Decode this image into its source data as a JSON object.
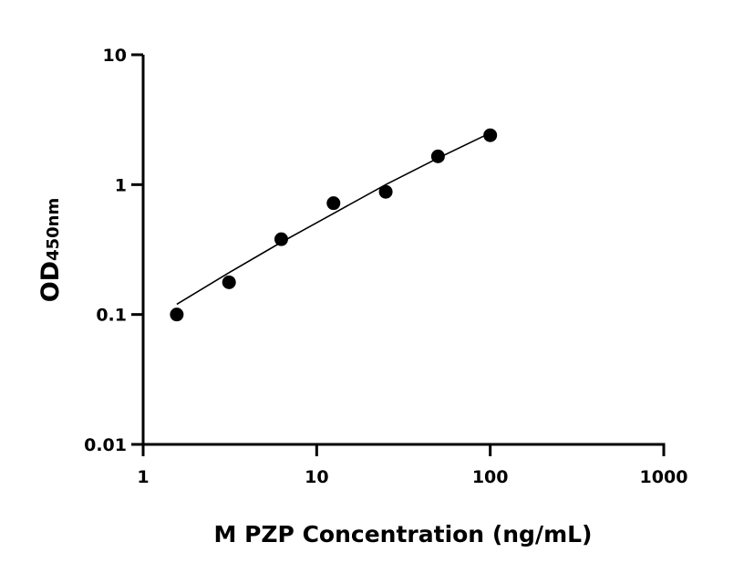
{
  "chart_data": {
    "type": "scatter",
    "title": "",
    "xlabel": "M PZP Concentration (ng/mL)",
    "ylabel": "OD",
    "ylabel_subscript": "450nm",
    "xscale": "log",
    "yscale": "log",
    "xlim": [
      1,
      1000
    ],
    "ylim": [
      0.01,
      10
    ],
    "xticks": [
      1,
      10,
      100,
      1000
    ],
    "xtick_labels": [
      "1",
      "10",
      "100",
      "1000"
    ],
    "yticks": [
      0.01,
      0.1,
      1,
      10
    ],
    "ytick_labels": [
      "0.01",
      "0.1",
      "1",
      "10"
    ],
    "grid": false,
    "legend": "none",
    "colors": {
      "points": "#000000",
      "curve": "#000000"
    },
    "series": [
      {
        "x": [
          1.5625,
          3.125,
          6.25,
          12.5,
          25,
          50,
          100
        ],
        "y": [
          0.1,
          0.177,
          0.38,
          0.72,
          0.88,
          1.65,
          2.4
        ]
      }
    ],
    "fit_curve": {
      "x": [
        1.5625,
        3.125,
        6.25,
        12.5,
        25,
        50,
        100
      ],
      "y": [
        0.12,
        0.21,
        0.36,
        0.6,
        1.0,
        1.6,
        2.5
      ]
    }
  }
}
